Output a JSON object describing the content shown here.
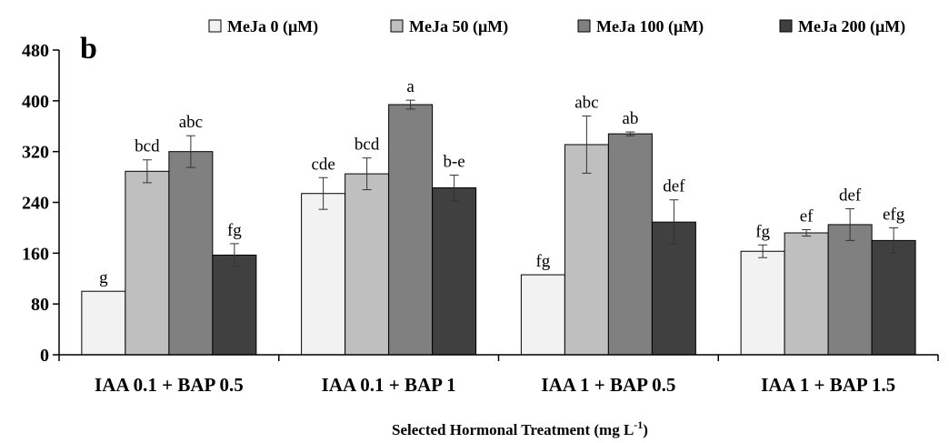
{
  "chart_data": {
    "type": "bar",
    "panel_label": "b",
    "categories": [
      "IAA 0.1 + BAP 0.5",
      "IAA 0.1 + BAP 1",
      "IAA 1 + BAP 0.5",
      "IAA 1 + BAP 1.5"
    ],
    "series": [
      {
        "name": "MeJa 0 (μM)",
        "color": "#f2f2f2",
        "values": [
          100,
          254,
          126,
          163
        ],
        "errors": [
          0,
          25,
          0,
          10
        ],
        "letters": [
          "g",
          "cde",
          "fg",
          "fg"
        ]
      },
      {
        "name": "MeJa 50 (μM)",
        "color": "#bfbfbf",
        "values": [
          289,
          285,
          331,
          192
        ],
        "errors": [
          18,
          25,
          45,
          5
        ],
        "letters": [
          "bcd",
          "bcd",
          "abc",
          "ef"
        ]
      },
      {
        "name": "MeJa 100 (μM)",
        "color": "#808080",
        "values": [
          320,
          394,
          348,
          205
        ],
        "errors": [
          25,
          7,
          3,
          25
        ],
        "letters": [
          "abc",
          "a",
          "ab",
          "def"
        ]
      },
      {
        "name": "MeJa 200 (μM)",
        "color": "#404040",
        "values": [
          157,
          263,
          209,
          180
        ],
        "errors": [
          18,
          20,
          35,
          20
        ],
        "letters": [
          "fg",
          "b-e",
          "def",
          "efg"
        ]
      }
    ],
    "xlabel": "Selected Hormonal Treatment (mg L",
    "xlabel_sup": "-1",
    "xlabel_close": ")",
    "ylabel": "",
    "ylim": [
      0,
      480
    ],
    "yticks": [
      "0",
      "80",
      "160",
      "240",
      "320",
      "400",
      "480"
    ],
    "legend_position": "top",
    "grid": false
  }
}
